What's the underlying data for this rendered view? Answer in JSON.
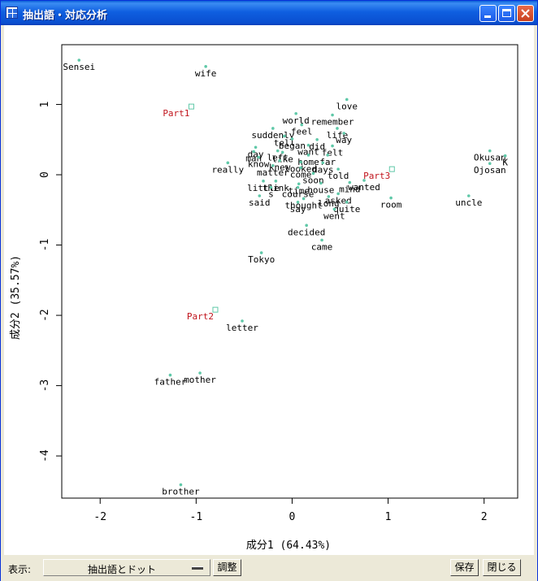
{
  "window": {
    "title": "抽出語・対応分析",
    "buttons": {
      "minimize": "minimize",
      "maximize": "maximize",
      "close": "close"
    }
  },
  "chart_data": {
    "type": "scatter",
    "xlabel": "成分1 (64.43%)",
    "ylabel": "成分2 (35.57%)",
    "xlim": [
      -2.4,
      2.35
    ],
    "ylim": [
      -4.6,
      1.85
    ],
    "xticks": [
      -2,
      -1,
      0,
      1,
      2
    ],
    "yticks": [
      -4,
      -3,
      -2,
      -1,
      0,
      1
    ],
    "grid": false,
    "words": [
      {
        "label": "Sensei",
        "x": -2.22,
        "y": 1.63
      },
      {
        "label": "wife",
        "x": -0.9,
        "y": 1.54
      },
      {
        "label": "love",
        "x": 0.57,
        "y": 1.07
      },
      {
        "label": "world",
        "x": 0.04,
        "y": 0.87
      },
      {
        "label": "remember",
        "x": 0.42,
        "y": 0.85
      },
      {
        "label": "feel",
        "x": 0.1,
        "y": 0.71
      },
      {
        "label": "suddenly",
        "x": -0.2,
        "y": 0.66
      },
      {
        "label": "life",
        "x": 0.47,
        "y": 0.66
      },
      {
        "label": "tell",
        "x": -0.08,
        "y": 0.55
      },
      {
        "label": "began",
        "x": 0.0,
        "y": 0.51
      },
      {
        "label": "did",
        "x": 0.26,
        "y": 0.5
      },
      {
        "label": "way",
        "x": 0.54,
        "y": 0.59
      },
      {
        "label": "day",
        "x": -0.38,
        "y": 0.39
      },
      {
        "label": "want",
        "x": 0.17,
        "y": 0.42
      },
      {
        "label": "felt",
        "x": 0.42,
        "y": 0.41
      },
      {
        "label": "man",
        "x": -0.4,
        "y": 0.33
      },
      {
        "label": "left",
        "x": -0.15,
        "y": 0.34
      },
      {
        "label": "like",
        "x": -0.1,
        "y": 0.32
      },
      {
        "label": "home",
        "x": 0.17,
        "y": 0.28
      },
      {
        "label": "far",
        "x": 0.37,
        "y": 0.28
      },
      {
        "label": "know",
        "x": -0.35,
        "y": 0.25
      },
      {
        "label": "knew",
        "x": -0.13,
        "y": 0.2
      },
      {
        "label": "looked",
        "x": 0.09,
        "y": 0.18
      },
      {
        "label": "days",
        "x": 0.32,
        "y": 0.17
      },
      {
        "label": "really",
        "x": -0.67,
        "y": 0.17
      },
      {
        "label": "matter",
        "x": -0.2,
        "y": 0.13
      },
      {
        "label": "come",
        "x": 0.09,
        "y": 0.1
      },
      {
        "label": "told",
        "x": 0.48,
        "y": 0.08
      },
      {
        "label": "soon",
        "x": 0.22,
        "y": 0.02
      },
      {
        "label": "little",
        "x": -0.3,
        "y": -0.09
      },
      {
        "label": "think",
        "x": -0.17,
        "y": -0.09
      },
      {
        "label": "time",
        "x": 0.07,
        "y": -0.13
      },
      {
        "label": "house",
        "x": 0.3,
        "y": -0.12
      },
      {
        "label": "mind",
        "x": 0.6,
        "y": -0.11
      },
      {
        "label": "wanted",
        "x": 0.75,
        "y": -0.08
      },
      {
        "label": "s",
        "x": -0.22,
        "y": -0.18
      },
      {
        "label": "course",
        "x": 0.06,
        "y": -0.18
      },
      {
        "label": "said",
        "x": -0.34,
        "y": -0.3
      },
      {
        "label": "asked",
        "x": 0.48,
        "y": -0.27
      },
      {
        "label": "long",
        "x": 0.38,
        "y": -0.31
      },
      {
        "label": "thought",
        "x": 0.12,
        "y": -0.34
      },
      {
        "label": "say",
        "x": 0.06,
        "y": -0.39
      },
      {
        "label": "quite",
        "x": 0.57,
        "y": -0.39
      },
      {
        "label": "went",
        "x": 0.44,
        "y": -0.49
      },
      {
        "label": "room",
        "x": 1.03,
        "y": -0.33
      },
      {
        "label": "uncle",
        "x": 1.84,
        "y": -0.3
      },
      {
        "label": "Okusan",
        "x": 2.06,
        "y": 0.34
      },
      {
        "label": "K",
        "x": 2.22,
        "y": 0.27
      },
      {
        "label": "Ojosan",
        "x": 2.06,
        "y": 0.16
      },
      {
        "label": "decided",
        "x": 0.15,
        "y": -0.72
      },
      {
        "label": "came",
        "x": 0.31,
        "y": -0.93
      },
      {
        "label": "Tokyo",
        "x": -0.32,
        "y": -1.11
      },
      {
        "label": "letter",
        "x": -0.52,
        "y": -2.08
      },
      {
        "label": "mother",
        "x": -0.96,
        "y": -2.82
      },
      {
        "label": "father",
        "x": -1.27,
        "y": -2.85
      },
      {
        "label": "brother",
        "x": -1.16,
        "y": -4.41
      }
    ],
    "parts": [
      {
        "label": "Part1",
        "x": -1.05,
        "y": 0.97
      },
      {
        "label": "Part2",
        "x": -0.8,
        "y": -1.92
      },
      {
        "label": "Part3",
        "x": 1.04,
        "y": 0.08
      }
    ],
    "colors": {
      "point": "#5fc8a8",
      "part": "#c0141c",
      "text": "#000000"
    }
  },
  "statusbar": {
    "display_label": "表示:",
    "display_value": "抽出語とドット",
    "adjust_label": "調整",
    "save_label": "保存",
    "close_label": "閉じる"
  }
}
